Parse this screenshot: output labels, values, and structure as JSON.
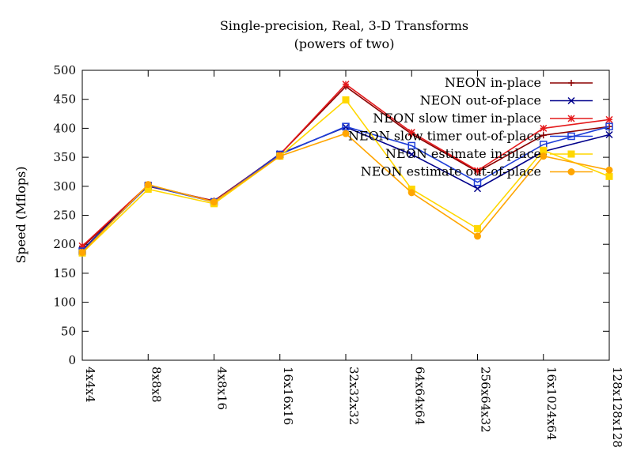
{
  "chart_data": {
    "type": "line",
    "title": "Single-precision, Real, 3-D Transforms",
    "subtitle": "(powers of two)",
    "xlabel": "",
    "ylabel": "Speed (Mflops)",
    "ylim": [
      0,
      500
    ],
    "yticks": [
      0,
      50,
      100,
      150,
      200,
      250,
      300,
      350,
      400,
      450,
      500
    ],
    "grid": false,
    "legend_position": "top-right",
    "categories": [
      "4x4x4",
      "8x8x8",
      "4x8x16",
      "16x16x16",
      "32x32x32",
      "64x64x64",
      "256x64x32",
      "16x1024x64",
      "128x128x128"
    ],
    "series": [
      {
        "name": "NEON in-place",
        "color": "#8b0000",
        "marker": "plus",
        "values": [
          195,
          300,
          275,
          355,
          472,
          390,
          325,
          388,
          403
        ]
      },
      {
        "name": "NEON out-of-place",
        "color": "#00008b",
        "marker": "cross",
        "values": [
          190,
          302,
          274,
          356,
          402,
          355,
          296,
          360,
          389
        ]
      },
      {
        "name": "NEON slow timer in-place",
        "color": "#e41a1c",
        "marker": "star",
        "values": [
          197,
          302,
          274,
          355,
          476,
          393,
          327,
          400,
          415
        ]
      },
      {
        "name": "NEON slow timer out-of-place",
        "color": "#1f3fd8",
        "marker": "box",
        "values": [
          188,
          301,
          273,
          355,
          403,
          370,
          307,
          372,
          403
        ]
      },
      {
        "name": "NEON estimate in-place",
        "color": "#ffd700",
        "marker": "filled-box",
        "values": [
          185,
          295,
          270,
          352,
          449,
          295,
          227,
          362,
          317
        ]
      },
      {
        "name": "NEON estimate out-of-place",
        "color": "#ffa500",
        "marker": "filled-circle",
        "values": [
          186,
          303,
          273,
          352,
          391,
          289,
          214,
          352,
          328
        ]
      }
    ]
  }
}
